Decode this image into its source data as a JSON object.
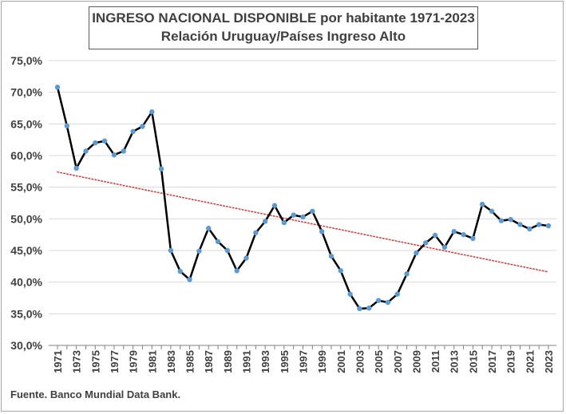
{
  "title": {
    "line1": "INGRESO NACIONAL DISPONIBLE por habitante 1971-2023",
    "line2": "Relación Uruguay/Países Ingreso Alto"
  },
  "source": "Fuente. Banco Mundial Data Bank.",
  "colors": {
    "series_line": "#000000",
    "markers": "#5b9bd5",
    "trendline": "#e03030",
    "gridline": "#d9d9d9",
    "axis_text": "#404040"
  },
  "chart_data": {
    "type": "line",
    "title": "INGRESO NACIONAL DISPONIBLE por habitante 1971-2023",
    "subtitle": "Relación Uruguay/Países Ingreso Alto",
    "xlabel": "",
    "ylabel": "",
    "ylim": [
      30,
      75
    ],
    "yticks": [
      30,
      35,
      40,
      45,
      50,
      55,
      60,
      65,
      70,
      75
    ],
    "ytick_labels": [
      "30,0%",
      "35,0%",
      "40,0%",
      "45,0%",
      "50,0%",
      "55,0%",
      "60,0%",
      "65,0%",
      "70,0%",
      "75,0%"
    ],
    "xtick_labels": [
      "1971",
      "1973",
      "1975",
      "1977",
      "1979",
      "1981",
      "1983",
      "1985",
      "1987",
      "1989",
      "1991",
      "1993",
      "1995",
      "1997",
      "1999",
      "2001",
      "2003",
      "2005",
      "2007",
      "2009",
      "2011",
      "2013",
      "2015",
      "2017",
      "2019",
      "2021",
      "2023"
    ],
    "grid": "horizontal",
    "legend": "none",
    "x": [
      1971,
      1972,
      1973,
      1974,
      1975,
      1976,
      1977,
      1978,
      1979,
      1980,
      1981,
      1982,
      1983,
      1984,
      1985,
      1986,
      1987,
      1988,
      1989,
      1990,
      1991,
      1992,
      1993,
      1994,
      1995,
      1996,
      1997,
      1998,
      1999,
      2000,
      2001,
      2002,
      2003,
      2004,
      2005,
      2006,
      2007,
      2008,
      2009,
      2010,
      2011,
      2012,
      2013,
      2014,
      2015,
      2016,
      2017,
      2018,
      2019,
      2020,
      2021,
      2022,
      2023
    ],
    "series": [
      {
        "values": [
          70.8,
          64.7,
          58.0,
          60.7,
          62.0,
          62.3,
          60.1,
          60.7,
          63.8,
          64.6,
          66.9,
          57.9,
          45.0,
          41.7,
          40.4,
          44.9,
          48.5,
          46.4,
          45.0,
          41.8,
          43.8,
          47.8,
          49.6,
          52.1,
          49.4,
          50.6,
          50.3,
          51.2,
          48.0,
          44.1,
          41.8,
          38.1,
          35.8,
          35.9,
          37.1,
          36.8,
          38.1,
          41.3,
          44.6,
          46.2,
          47.4,
          45.5,
          48.0,
          47.5,
          46.9,
          52.3,
          51.2,
          49.7,
          49.9,
          49.1,
          48.4,
          49.1,
          48.9
        ]
      }
    ],
    "trendline": {
      "type": "linear",
      "style": "dotted",
      "start": {
        "x": 1971,
        "y": 57.4
      },
      "end": {
        "x": 2023,
        "y": 41.6
      }
    }
  }
}
